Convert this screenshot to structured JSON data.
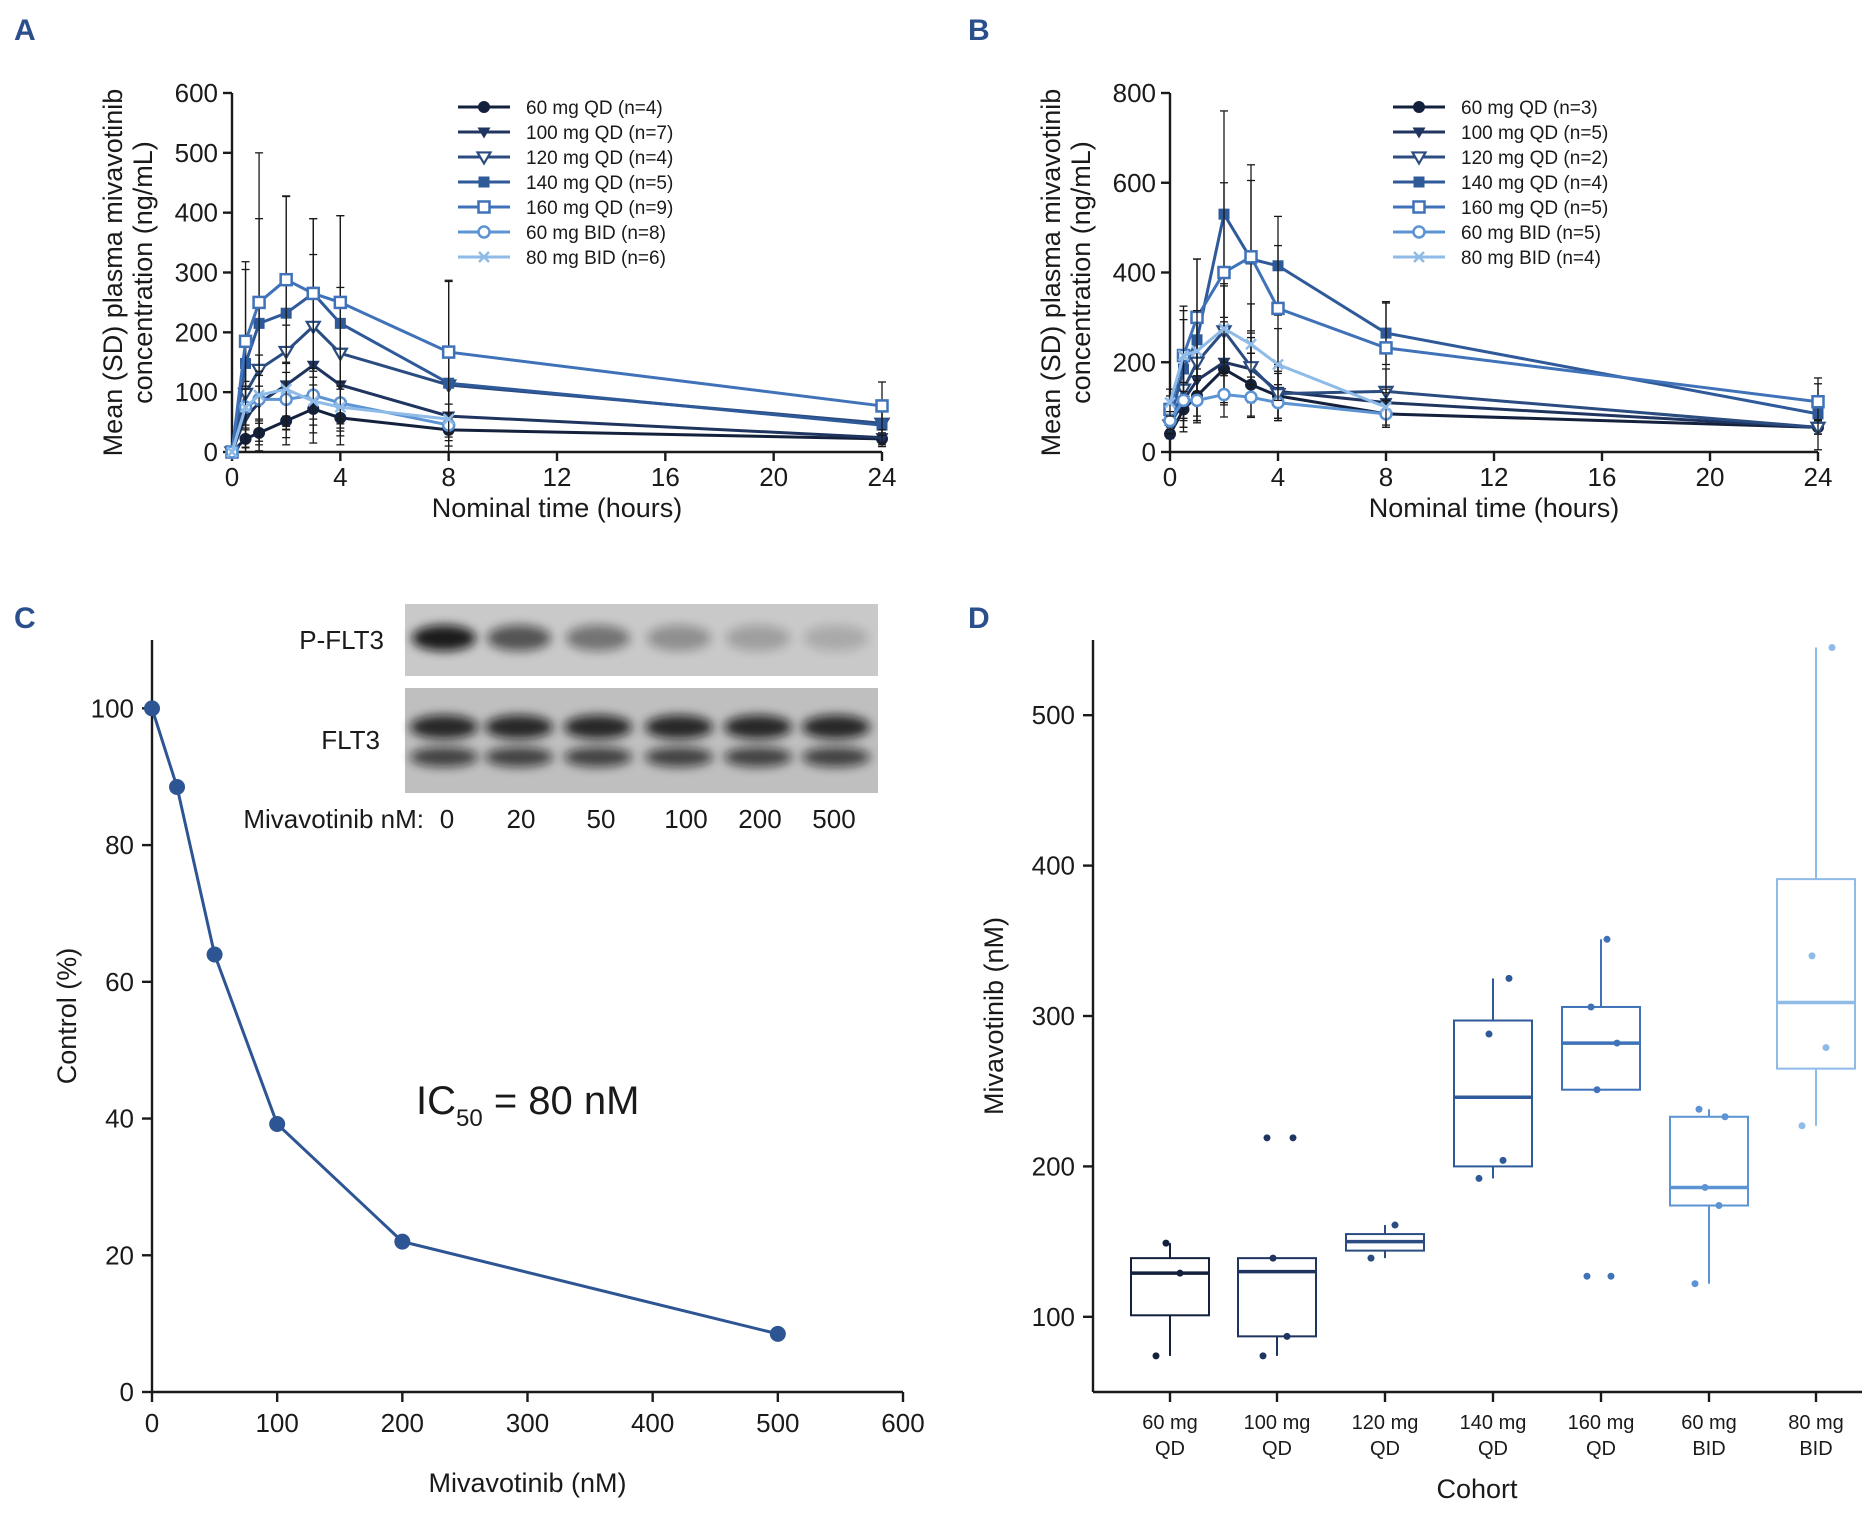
{
  "panels": {
    "a": "A",
    "b": "B",
    "c": "C",
    "d": "D"
  },
  "chart_data": [
    {
      "panel": "A",
      "type": "line",
      "xlabel": "Nominal time (hours)",
      "ylabel_lines": [
        "Mean (SD) plasma mivavotinib",
        "concentration (ng/mL)"
      ],
      "xlim": [
        0,
        24
      ],
      "ylim": [
        0,
        600
      ],
      "xticks": [
        0,
        4,
        8,
        12,
        16,
        20,
        24
      ],
      "yticks": [
        0,
        100,
        200,
        300,
        400,
        500,
        600
      ],
      "legend_position": "top-right",
      "series": [
        {
          "name": "60 mg QD (n=4)",
          "color": "#14213d",
          "marker": "filled-circle",
          "x": [
            0,
            0.5,
            1,
            2,
            3,
            4,
            8,
            24
          ],
          "y": [
            0,
            22,
            32,
            52,
            72,
            57,
            37,
            22
          ],
          "err": [
            0,
            15,
            20,
            28,
            40,
            30,
            18,
            10
          ]
        },
        {
          "name": "100 mg QD (n=7)",
          "color": "#1f3560",
          "marker": "filled-triangle-down",
          "x": [
            0,
            0.5,
            1,
            2,
            3,
            4,
            8,
            24
          ],
          "y": [
            0,
            58,
            82,
            112,
            145,
            112,
            60,
            24
          ],
          "err": [
            0,
            60,
            80,
            100,
            130,
            100,
            50,
            15
          ]
        },
        {
          "name": "120 mg QD (n=4)",
          "color": "#2a4c80",
          "marker": "open-triangle-down",
          "x": [
            0,
            0.5,
            1,
            2,
            3,
            4,
            8,
            24
          ],
          "y": [
            0,
            98,
            138,
            168,
            210,
            165,
            112,
            48
          ],
          "err": [
            0,
            90,
            120,
            130,
            120,
            110,
            60,
            20
          ]
        },
        {
          "name": "140 mg QD (n=5)",
          "color": "#2f5a9a",
          "marker": "filled-square",
          "x": [
            0,
            0.5,
            1,
            2,
            3,
            4,
            8,
            24
          ],
          "y": [
            0,
            148,
            215,
            232,
            265,
            215,
            115,
            45
          ],
          "err": [
            0,
            170,
            285,
            195,
            125,
            180,
            170,
            30
          ]
        },
        {
          "name": "160 mg QD (n=9)",
          "color": "#3f72b8",
          "marker": "open-square",
          "x": [
            0,
            0.5,
            1,
            2,
            3,
            4,
            8,
            24
          ],
          "y": [
            0,
            185,
            250,
            288,
            265,
            250,
            167,
            77
          ],
          "err": [
            0,
            120,
            140,
            140,
            125,
            145,
            120,
            40
          ]
        },
        {
          "name": "60 mg BID (n=8)",
          "color": "#5b93d3",
          "marker": "open-circle",
          "x": [
            0,
            0.5,
            1,
            2,
            3,
            4,
            8
          ],
          "y": [
            0,
            75,
            88,
            88,
            95,
            82,
            45
          ],
          "err": [
            0,
            30,
            40,
            45,
            40,
            35,
            20
          ]
        },
        {
          "name": "80 mg BID (n=6)",
          "color": "#8fbbe8",
          "marker": "x",
          "x": [
            0,
            0.5,
            1,
            2,
            3,
            4,
            8
          ],
          "y": [
            0,
            75,
            95,
            105,
            85,
            75,
            55
          ],
          "err": [
            0,
            35,
            40,
            45,
            40,
            35,
            25
          ]
        }
      ]
    },
    {
      "panel": "B",
      "type": "line",
      "xlabel": "Nominal time (hours)",
      "ylabel_lines": [
        "Mean (SD) plasma mivavotinib",
        "concentration (ng/mL)"
      ],
      "xlim": [
        0,
        24
      ],
      "ylim": [
        0,
        800
      ],
      "xticks": [
        0,
        4,
        8,
        12,
        16,
        20,
        24
      ],
      "yticks": [
        0,
        200,
        400,
        600,
        800
      ],
      "legend_position": "top-right",
      "series": [
        {
          "name": "60 mg QD (n=3)",
          "color": "#14213d",
          "marker": "filled-circle",
          "x": [
            0,
            0.5,
            1,
            2,
            3,
            4,
            8,
            24
          ],
          "y": [
            40,
            95,
            125,
            185,
            150,
            125,
            85,
            55
          ],
          "err": [
            10,
            40,
            60,
            80,
            70,
            50,
            30,
            15
          ]
        },
        {
          "name": "100 mg QD (n=5)",
          "color": "#1f3560",
          "marker": "filled-triangle-down",
          "x": [
            0,
            0.5,
            1,
            2,
            3,
            4,
            8,
            24
          ],
          "y": [
            60,
            115,
            160,
            200,
            185,
            135,
            110,
            55
          ],
          "err": [
            20,
            60,
            80,
            90,
            70,
            60,
            35,
            15
          ]
        },
        {
          "name": "120 mg QD (n=2)",
          "color": "#2a4c80",
          "marker": "open-triangle-down",
          "x": [
            0,
            0.5,
            1,
            2,
            3,
            4,
            8,
            24
          ],
          "y": [
            60,
            140,
            200,
            270,
            190,
            130,
            135,
            55
          ],
          "err": [
            20,
            70,
            90,
            100,
            80,
            60,
            50,
            15
          ]
        },
        {
          "name": "140 mg QD (n=4)",
          "color": "#2f5a9a",
          "marker": "filled-square",
          "x": [
            0,
            0.5,
            1,
            2,
            3,
            4,
            8,
            24
          ],
          "y": [
            70,
            185,
            250,
            530,
            430,
            415,
            265,
            85
          ],
          "err": [
            30,
            140,
            180,
            230,
            210,
            110,
            70,
            80
          ]
        },
        {
          "name": "160 mg QD (n=5)",
          "color": "#3f72b8",
          "marker": "open-square",
          "x": [
            0,
            0.5,
            1,
            2,
            3,
            4,
            8,
            24
          ],
          "y": [
            95,
            215,
            300,
            400,
            435,
            320,
            232,
            112
          ],
          "err": [
            30,
            100,
            130,
            200,
            170,
            140,
            100,
            40
          ]
        },
        {
          "name": "60 mg BID (n=5)",
          "color": "#5b93d3",
          "marker": "open-circle",
          "x": [
            0,
            0.5,
            1,
            2,
            3,
            4,
            8
          ],
          "y": [
            70,
            115,
            115,
            128,
            122,
            110,
            85
          ],
          "err": [
            20,
            40,
            45,
            50,
            45,
            40,
            30
          ]
        },
        {
          "name": "80 mg BID (n=4)",
          "color": "#8fbbe8",
          "marker": "x",
          "x": [
            0,
            0.5,
            1,
            2,
            3,
            4,
            8
          ],
          "y": [
            110,
            215,
            225,
            275,
            240,
            195,
            100
          ],
          "err": [
            30,
            80,
            90,
            100,
            90,
            80,
            40
          ]
        }
      ]
    },
    {
      "panel": "C",
      "type": "line",
      "xlabel": "Mivavotinib (nM)",
      "ylabel": "Control (%)",
      "xlim": [
        0,
        600
      ],
      "ylim": [
        0,
        110
      ],
      "xticks": [
        0,
        100,
        200,
        300,
        400,
        500,
        600
      ],
      "yticks": [
        0,
        20,
        40,
        60,
        80,
        100
      ],
      "color": "#2e5593",
      "x": [
        0,
        20,
        50,
        100,
        200,
        500
      ],
      "y": [
        100,
        88.5,
        64,
        39.2,
        22,
        8.5
      ],
      "annotation": {
        "main": "IC",
        "sub": "50",
        "rest": " = 80 nM"
      },
      "inset_blot": {
        "row_labels": [
          "P-FLT3",
          "FLT3"
        ],
        "dose_label": "Mivavotinib nM:",
        "doses": [
          "0",
          "20",
          "50",
          "100",
          "200",
          "500"
        ]
      }
    },
    {
      "panel": "D",
      "type": "box",
      "xlabel": "Cohort",
      "ylabel": "Mivavotinib (nM)",
      "ylim": [
        50,
        550
      ],
      "yticks": [
        100,
        200,
        300,
        400,
        500
      ],
      "categories": [
        {
          "line1": "60 mg",
          "line2": "QD"
        },
        {
          "line1": "100 mg",
          "line2": "QD"
        },
        {
          "line1": "120 mg",
          "line2": "QD"
        },
        {
          "line1": "140 mg",
          "line2": "QD"
        },
        {
          "line1": "160 mg",
          "line2": "QD"
        },
        {
          "line1": "60 mg",
          "line2": "BID"
        },
        {
          "line1": "80 mg",
          "line2": "BID"
        }
      ],
      "boxes": [
        {
          "color": "#14213d",
          "min": 74,
          "q1": 101,
          "median": 129,
          "q3": 139,
          "max": 149,
          "points": [
            74,
            129,
            149
          ]
        },
        {
          "color": "#1f3560",
          "min": 74,
          "q1": 87,
          "median": 130,
          "q3": 139,
          "max": 139,
          "points": [
            74,
            87,
            139,
            219,
            219
          ]
        },
        {
          "color": "#2a4c80",
          "min": 139,
          "q1": 144,
          "median": 150,
          "q3": 155,
          "max": 161,
          "points": [
            139,
            161
          ]
        },
        {
          "color": "#2f5a9a",
          "min": 192,
          "q1": 200,
          "median": 246,
          "q3": 297,
          "max": 325,
          "points": [
            192,
            204,
            288,
            325
          ]
        },
        {
          "color": "#3f72b8",
          "min": 251,
          "q1": 251,
          "median": 282,
          "q3": 306,
          "max": 351,
          "points": [
            127,
            127,
            251,
            282,
            306,
            351
          ]
        },
        {
          "color": "#5b93d3",
          "min": 122,
          "q1": 174,
          "median": 186,
          "q3": 233,
          "max": 238,
          "points": [
            122,
            174,
            186,
            233,
            238
          ]
        },
        {
          "color": "#8fbbe8",
          "min": 227,
          "q1": 265,
          "median": 309,
          "q3": 391,
          "max": 545,
          "points": [
            227,
            279,
            340,
            545
          ]
        }
      ]
    }
  ]
}
